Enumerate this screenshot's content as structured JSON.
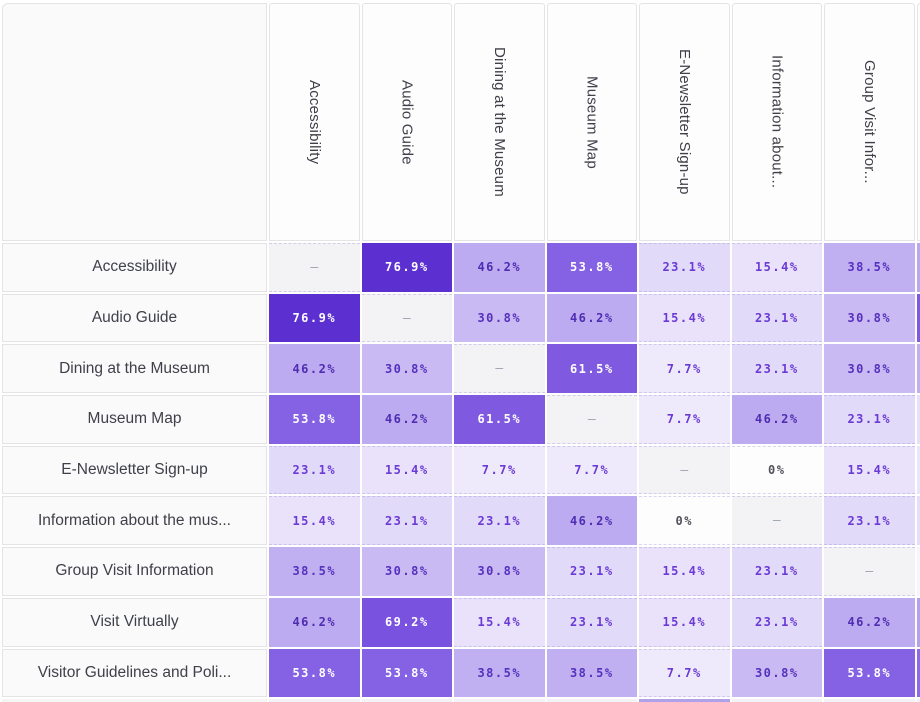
{
  "matrix": {
    "columns": [
      "Accessibility",
      "Audio Guide",
      "Dining at the Museum",
      "Museum Map",
      "E-Newsletter Sign-up",
      "Information about...",
      "Group Visit Infor..."
    ],
    "rows": [
      {
        "label": "Accessibility",
        "display": [
          "–",
          "76.9%",
          "46.2%",
          "53.8%",
          "23.1%",
          "15.4%",
          "38.5%"
        ]
      },
      {
        "label": "Audio Guide",
        "display": [
          "76.9%",
          "–",
          "30.8%",
          "46.2%",
          "15.4%",
          "23.1%",
          "30.8%"
        ]
      },
      {
        "label": "Dining at the Museum",
        "display": [
          "46.2%",
          "30.8%",
          "–",
          "61.5%",
          "7.7%",
          "23.1%",
          "30.8%"
        ]
      },
      {
        "label": "Museum Map",
        "display": [
          "53.8%",
          "46.2%",
          "61.5%",
          "–",
          "7.7%",
          "46.2%",
          "23.1%"
        ]
      },
      {
        "label": "E-Newsletter Sign-up",
        "display": [
          "23.1%",
          "15.4%",
          "7.7%",
          "7.7%",
          "–",
          "0%",
          "15.4%"
        ]
      },
      {
        "label": "Information about the mus...",
        "display": [
          "15.4%",
          "23.1%",
          "23.1%",
          "46.2%",
          "0%",
          "–",
          "23.1%"
        ]
      },
      {
        "label": "Group Visit Information",
        "display": [
          "38.5%",
          "30.8%",
          "30.8%",
          "23.1%",
          "15.4%",
          "23.1%",
          "–"
        ]
      },
      {
        "label": "Visit Virtually",
        "display": [
          "46.2%",
          "69.2%",
          "15.4%",
          "23.1%",
          "15.4%",
          "23.1%",
          "46.2%"
        ]
      },
      {
        "label": "Visitor Guidelines and Poli...",
        "display": [
          "53.8%",
          "53.8%",
          "38.5%",
          "38.5%",
          "7.7%",
          "30.8%",
          "53.8%"
        ]
      }
    ]
  },
  "chart_data": {
    "type": "heatmap",
    "x_categories": [
      "Accessibility",
      "Audio Guide",
      "Dining at the Museum",
      "Museum Map",
      "E-Newsletter Sign-up",
      "Information about...",
      "Group Visit Infor..."
    ],
    "y_categories": [
      "Accessibility",
      "Audio Guide",
      "Dining at the Museum",
      "Museum Map",
      "E-Newsletter Sign-up",
      "Information about the mus...",
      "Group Visit Information",
      "Visit Virtually",
      "Visitor Guidelines and Poli..."
    ],
    "unit": "%",
    "diagonal_marker": "–",
    "matrix": [
      [
        null,
        76.9,
        46.2,
        53.8,
        23.1,
        15.4,
        38.5
      ],
      [
        76.9,
        null,
        30.8,
        46.2,
        15.4,
        23.1,
        30.8
      ],
      [
        46.2,
        30.8,
        null,
        61.5,
        7.7,
        23.1,
        30.8
      ],
      [
        53.8,
        46.2,
        61.5,
        null,
        7.7,
        46.2,
        23.1
      ],
      [
        23.1,
        15.4,
        7.7,
        7.7,
        null,
        0,
        15.4
      ],
      [
        15.4,
        23.1,
        23.1,
        46.2,
        0,
        null,
        23.1
      ],
      [
        38.5,
        30.8,
        30.8,
        23.1,
        15.4,
        23.1,
        null
      ],
      [
        46.2,
        69.2,
        15.4,
        23.1,
        15.4,
        23.1,
        46.2
      ],
      [
        53.8,
        53.8,
        38.5,
        38.5,
        7.7,
        30.8,
        53.8
      ]
    ],
    "value_range": [
      0,
      76.9
    ],
    "colormap": "white-to-violet"
  },
  "colors": {
    "0": {
      "bg": "#fdfdfe",
      "text": "#52525b"
    },
    "7.7": {
      "bg": "#eeeafb",
      "text": "#6b3ad4"
    },
    "15.4": {
      "bg": "#e9e2fa",
      "text": "#6b3ad4"
    },
    "23.1": {
      "bg": "#e2daf9",
      "text": "#6b3ad4"
    },
    "30.8": {
      "bg": "#c9baf3",
      "text": "#5531bd"
    },
    "38.5": {
      "bg": "#c0b0f1",
      "text": "#5531bd"
    },
    "46.2": {
      "bg": "#bcabf0",
      "text": "#4f2db2"
    },
    "53.8": {
      "bg": "#8562e4",
      "text": "#ffffff"
    },
    "61.5": {
      "bg": "#7f5ae1",
      "text": "#ffffff"
    },
    "69.2": {
      "bg": "#7a52e0",
      "text": "#ffffff"
    },
    "76.9": {
      "bg": "#5c2fd0",
      "text": "#ffffff"
    },
    "diag": {
      "bg": "#f3f3f5",
      "text": "#9ca3af"
    }
  },
  "clipped": {
    "right_header_bg": "#fdfdfd",
    "right_column": [
      "#b9a8ef",
      "#7e59e1",
      "#c0b0f1",
      "#e6e0fa",
      "#eae5fb",
      "#e5defa",
      "#f6f5fb",
      "#b3a1ee",
      "#8a6ae6"
    ],
    "bottom_label_bg": "#f5f5f6",
    "bottom_row": [
      "#f3f2f7",
      "#f3f2f7",
      "#f3f2f7",
      "#f3f2f7",
      "#b1a0ea",
      "#f3f2f7",
      "#f3f2f7"
    ],
    "bottom_right_bg": "#f1f0f6"
  }
}
